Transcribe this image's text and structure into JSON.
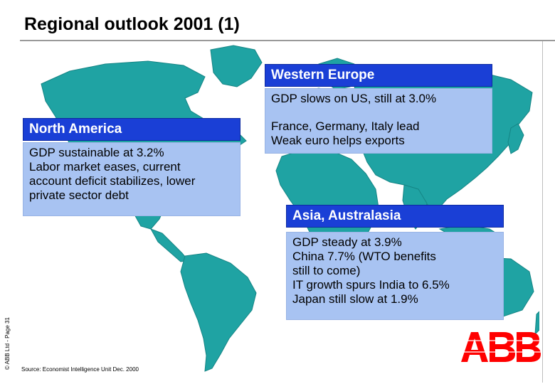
{
  "slide": {
    "title": "Regional outlook 2001 (1)"
  },
  "western_europe": {
    "heading": "Western Europe",
    "lines": [
      "GDP slows on US, still at 3.0%",
      "France, Germany, Italy lead",
      "Weak euro helps exports"
    ]
  },
  "north_america": {
    "heading": "North America",
    "lines": [
      "GDP sustainable at 3.2%",
      "Labor market eases, current",
      "account deficit stabilizes, lower",
      "private sector debt"
    ]
  },
  "asia": {
    "heading": "Asia, Australasia",
    "lines": [
      "GDP steady at 3.9%",
      "China 7.7% (WTO benefits",
      "still to come)",
      "IT growth spurs India to 6.5%",
      "Japan still slow at 1.9%"
    ]
  },
  "footer": {
    "copyright": "© ABB Ltd - Page 31",
    "source": "Source: Economist Intelligence Unit Dec. 2000"
  },
  "logo": {
    "text": "ABB",
    "color": "#ff0000"
  },
  "colors": {
    "header_blue": "#1a3fd6",
    "box_light_blue": "#a8c3f2",
    "ocean": "#ffffff",
    "land": "#1fa3a3"
  }
}
